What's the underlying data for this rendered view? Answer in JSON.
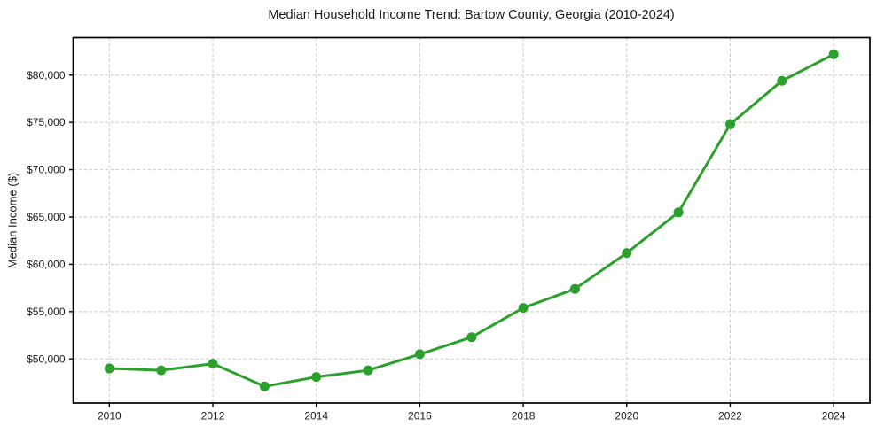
{
  "chart_data": {
    "type": "line",
    "title": "Median Household Income Trend: Bartow County, Georgia (2010-2024)",
    "xlabel": "",
    "ylabel": "Median Income ($)",
    "x": [
      2010,
      2011,
      2012,
      2013,
      2014,
      2015,
      2016,
      2017,
      2018,
      2019,
      2020,
      2021,
      2022,
      2023,
      2024
    ],
    "values": [
      49000,
      48800,
      49500,
      47100,
      48100,
      48800,
      50500,
      52300,
      55400,
      57400,
      61200,
      65500,
      74800,
      79400,
      82200
    ],
    "xticks": {
      "values": [
        2010,
        2012,
        2014,
        2016,
        2018,
        2020,
        2022,
        2024
      ],
      "labels": [
        "2010",
        "2012",
        "2014",
        "2016",
        "2018",
        "2020",
        "2022",
        "2024"
      ]
    },
    "yticks": {
      "values": [
        50000,
        55000,
        60000,
        65000,
        70000,
        75000,
        80000
      ],
      "labels": [
        "$50,000",
        "$55,000",
        "$60,000",
        "$65,000",
        "$70,000",
        "$75,000",
        "$80,000"
      ]
    },
    "xlim": [
      2009.3,
      2024.7
    ],
    "ylim": [
      45345,
      83955
    ],
    "grid": true,
    "legend": false,
    "marker": "circle",
    "colors": {
      "background": "#ffffff",
      "line": "#2ca02c",
      "marker": "#2ca02c",
      "grid": "#c9c9c9",
      "spine": "#000000",
      "text": "#1a1a1a"
    }
  }
}
